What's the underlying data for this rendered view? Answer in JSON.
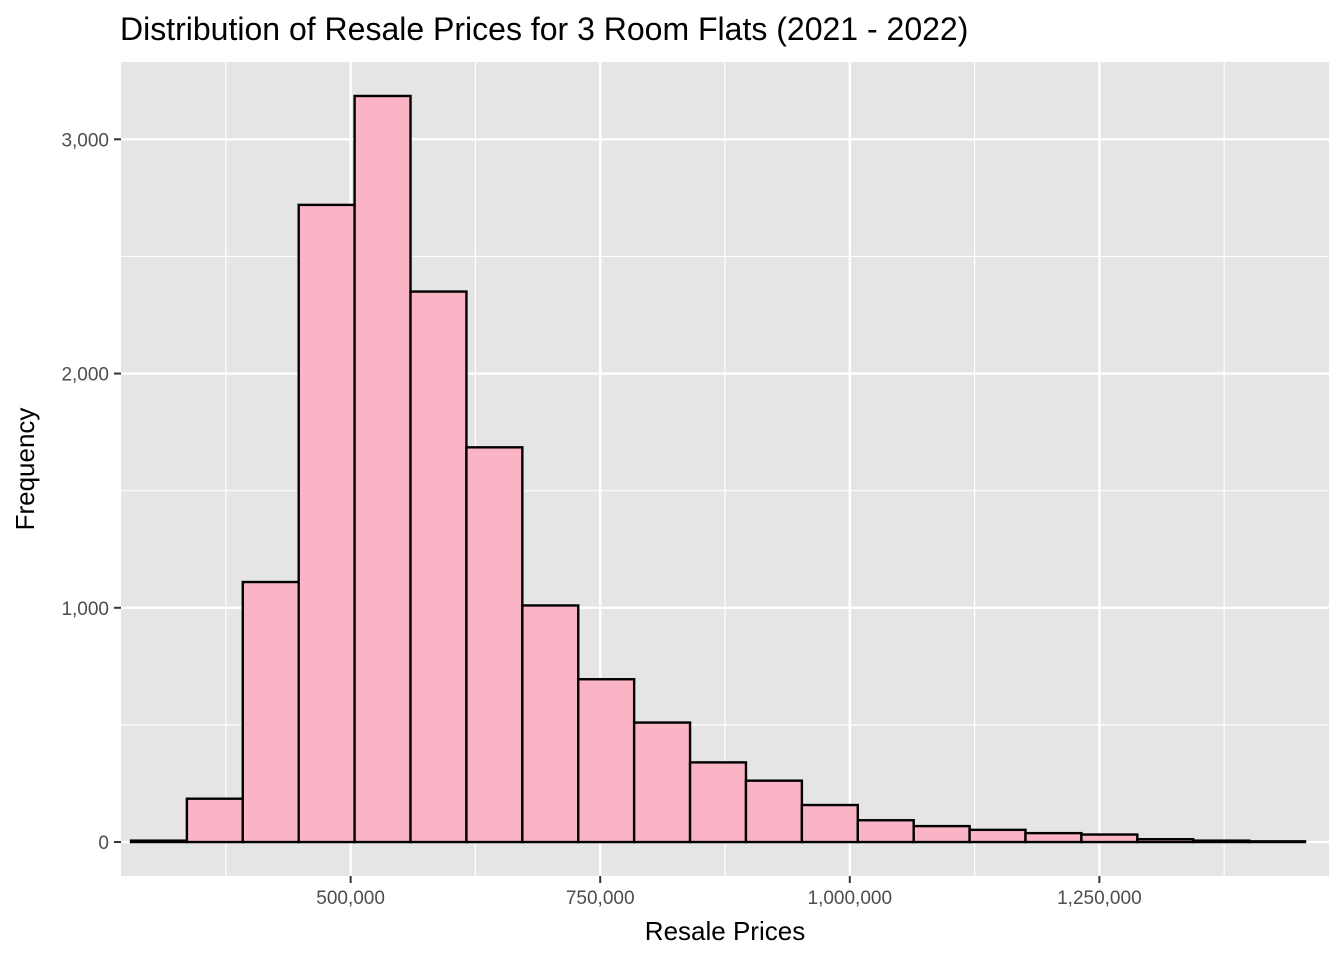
{
  "chart_data": {
    "type": "bar",
    "title": "Distribution of Resale Prices for 3 Room Flats (2021 - 2022)",
    "xlabel": "Resale Prices",
    "ylabel": "Frequency",
    "bin_edges": [
      280000,
      336000,
      392000,
      448000,
      504000,
      560000,
      616000,
      672000,
      728000,
      784000,
      840000,
      896000,
      952000,
      1008000,
      1064000,
      1120000,
      1176000,
      1232000,
      1288000,
      1344000,
      1400000,
      1456000
    ],
    "values": [
      6,
      185,
      1110,
      2720,
      3185,
      2350,
      1685,
      1010,
      695,
      510,
      340,
      262,
      158,
      93,
      68,
      52,
      38,
      32,
      12,
      6,
      3
    ],
    "xlim": [
      270000,
      1480000
    ],
    "ylim": [
      -145,
      3330
    ],
    "x_major_ticks": [
      500000,
      750000,
      1000000,
      1250000
    ],
    "x_tick_labels": [
      "500,000",
      "750,000",
      "1,000,000",
      "1,250,000"
    ],
    "x_minor_ticks": [
      375000,
      625000,
      875000,
      1125000,
      1375000
    ],
    "y_major_ticks": [
      0,
      1000,
      2000,
      3000
    ],
    "y_tick_labels": [
      "0",
      "1,000",
      "2,000",
      "3,000"
    ],
    "y_minor_ticks": [
      500,
      1500,
      2500
    ],
    "grid": true,
    "legend": "none",
    "colors": {
      "bar_fill": "#FBB4C6",
      "bar_outline": "#000000",
      "panel_background": "#E5E5E5",
      "grid_line": "#FFFFFF",
      "tick_label": "#4D4D4D",
      "text": "#000000"
    }
  }
}
